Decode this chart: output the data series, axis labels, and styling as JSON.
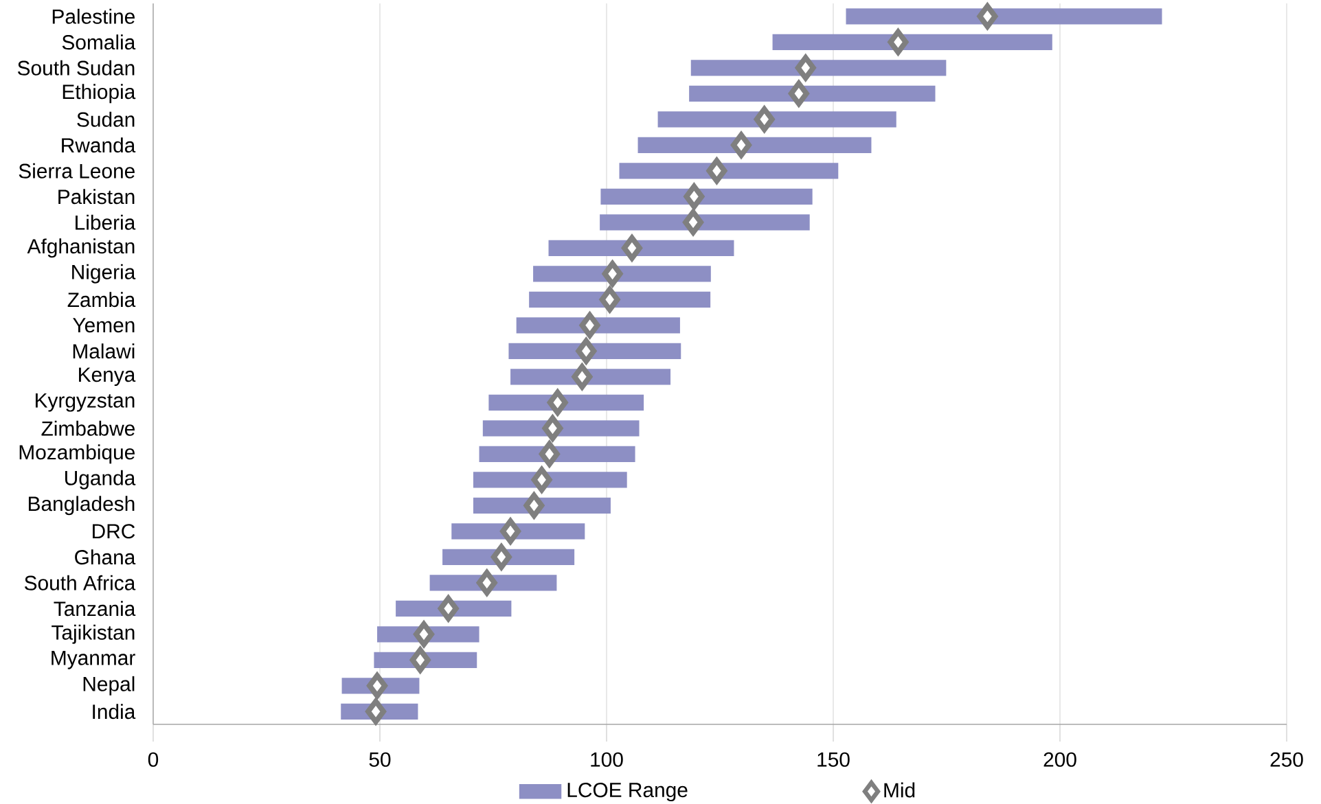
{
  "chart_data": {
    "type": "bar",
    "orientation": "horizontal",
    "categories": [
      "Palestine",
      "Somalia",
      "South Sudan",
      "Ethiopia",
      "Sudan",
      "Rwanda",
      "Sierra Leone",
      "Pakistan",
      "Liberia",
      "Afghanistan",
      "Nigeria",
      "Zambia",
      "Yemen",
      "Malawi",
      "Kenya",
      "Kyrgyzstan",
      "Zimbabwe",
      "Mozambique",
      "Uganda",
      "Bangladesh",
      "DRC",
      "Ghana",
      "South Africa",
      "Tanzania",
      "Tajikistan",
      "Myanmar",
      "Nepal",
      "India"
    ],
    "series": [
      {
        "name": "LCOE Range",
        "color": "#8d8fc4",
        "base": [
          152.8,
          136.6,
          118.6,
          118.2,
          111.3,
          106.9,
          102.8,
          98.7,
          98.5,
          87.2,
          83.8,
          82.9,
          80.1,
          78.4,
          78.8,
          74.0,
          72.7,
          71.9,
          70.6,
          70.6,
          65.8,
          63.8,
          61.0,
          53.5,
          49.4,
          48.7,
          41.6,
          41.4
        ],
        "values": [
          69.7,
          61.7,
          56.3,
          54.3,
          52.6,
          51.5,
          48.3,
          46.7,
          46.3,
          40.9,
          39.2,
          40.0,
          36.1,
          38.0,
          35.3,
          34.2,
          34.5,
          34.4,
          33.9,
          30.3,
          29.4,
          29.1,
          28.0,
          25.5,
          22.5,
          22.7,
          17.1,
          17.0
        ]
      },
      {
        "name": "Mid",
        "type": "scatter",
        "marker": "diamond",
        "color": "#7f7f7f",
        "x": [
          "Palestine",
          "Somalia",
          "South Sudan",
          "Ethiopia",
          "Sudan",
          "Rwanda",
          "Sierra Leone",
          "Pakistan",
          "Liberia",
          "Afghanistan",
          "Nigeria",
          "Zambia",
          "Yemen",
          "Malawi",
          "Kenya",
          "Kyrgyzstan",
          "Zimbabwe",
          "Mozambique",
          "Uganda",
          "Bangladesh",
          "DRC",
          "Ghana",
          "South Africa",
          "Tanzania",
          "Tajikistan",
          "Myanmar",
          "Nepal",
          "India"
        ],
        "values": [
          184.0,
          164.3,
          143.9,
          142.4,
          134.8,
          129.7,
          124.3,
          119.3,
          119.1,
          105.6,
          101.3,
          100.7,
          96.3,
          95.5,
          94.6,
          89.2,
          88.1,
          87.4,
          85.7,
          84.0,
          78.8,
          76.8,
          73.6,
          65.1,
          59.7,
          58.9,
          49.4,
          49.1
        ]
      }
    ],
    "xlim": [
      0,
      250
    ],
    "xticks": [
      0,
      50,
      100,
      150,
      200,
      250
    ],
    "grid": "x",
    "legend": "bottom"
  }
}
